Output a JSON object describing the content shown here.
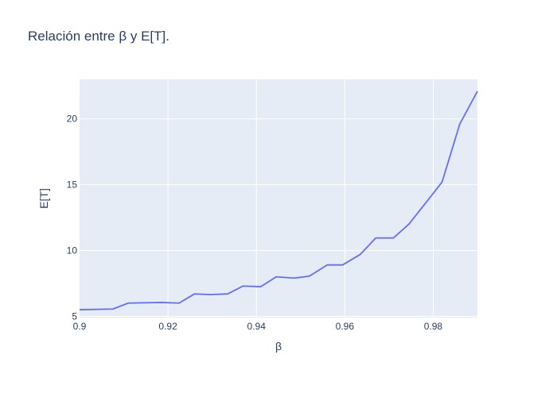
{
  "chart_data": {
    "type": "line",
    "title": "Relación entre β y E[T].",
    "xlabel": "β",
    "ylabel": "E[T]",
    "xlim": [
      0.9,
      0.99
    ],
    "ylim": [
      4.9,
      23.0
    ],
    "x_ticks": [
      0.9,
      0.92,
      0.94,
      0.96,
      0.98
    ],
    "x_tick_labels": [
      "0.9",
      "0.92",
      "0.94",
      "0.96",
      "0.98"
    ],
    "y_ticks": [
      5,
      10,
      15,
      20
    ],
    "y_tick_labels": [
      "5",
      "10",
      "15",
      "20"
    ],
    "grid": true,
    "legend": "none",
    "colors": {
      "line": "#636efa",
      "plot_bg": "#e5ecf6",
      "grid": "#ffffff",
      "text": "#2a3f5f"
    },
    "series": [
      {
        "x": [
          0.9,
          0.9075,
          0.911,
          0.9185,
          0.9225,
          0.926,
          0.9295,
          0.9335,
          0.937,
          0.941,
          0.9445,
          0.9485,
          0.952,
          0.956,
          0.9595,
          0.9635,
          0.967,
          0.971,
          0.9745,
          0.9785,
          0.982,
          0.986,
          0.99
        ],
        "y": [
          5.5,
          5.55,
          6.0,
          6.05,
          6.0,
          6.7,
          6.65,
          6.7,
          7.3,
          7.25,
          8.0,
          7.9,
          8.05,
          8.9,
          8.9,
          9.7,
          10.95,
          10.95,
          12.0,
          13.7,
          15.2,
          19.6,
          22.1
        ]
      }
    ]
  }
}
